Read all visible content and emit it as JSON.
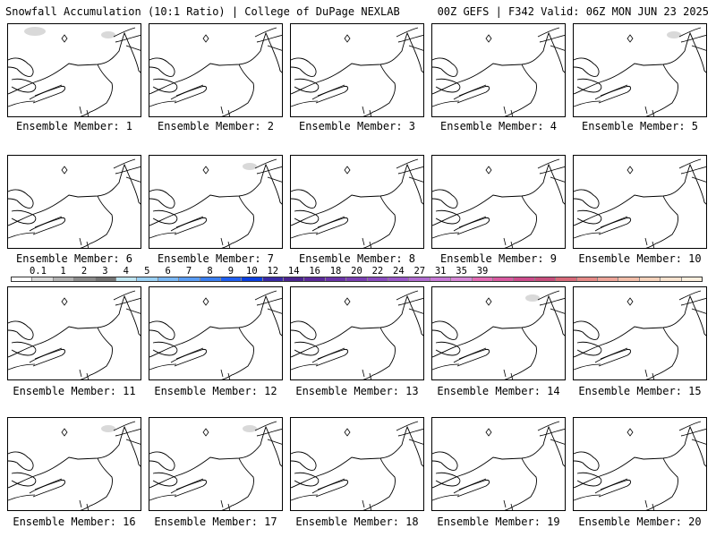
{
  "header": {
    "title_left": "Snowfall Accumulation (10:1 Ratio) | College of DuPage NEXLAB",
    "title_right": "00Z GEFS | F342 Valid: 06Z MON JUN 23 2025"
  },
  "panels": [
    {
      "label": "Ensemble Member: 1",
      "snow_patches": 2
    },
    {
      "label": "Ensemble Member: 2",
      "snow_patches": 0
    },
    {
      "label": "Ensemble Member: 3",
      "snow_patches": 0
    },
    {
      "label": "Ensemble Member: 4",
      "snow_patches": 0
    },
    {
      "label": "Ensemble Member: 5",
      "snow_patches": 1
    },
    {
      "label": "Ensemble Member: 6",
      "snow_patches": 0
    },
    {
      "label": "Ensemble Member: 7",
      "snow_patches": 1
    },
    {
      "label": "Ensemble Member: 8",
      "snow_patches": 0
    },
    {
      "label": "Ensemble Member: 9",
      "snow_patches": 0
    },
    {
      "label": "Ensemble Member: 10",
      "snow_patches": 0
    },
    {
      "label": "Ensemble Member: 11",
      "snow_patches": 0
    },
    {
      "label": "Ensemble Member: 12",
      "snow_patches": 0
    },
    {
      "label": "Ensemble Member: 13",
      "snow_patches": 0
    },
    {
      "label": "Ensemble Member: 14",
      "snow_patches": 1
    },
    {
      "label": "Ensemble Member: 15",
      "snow_patches": 0
    },
    {
      "label": "Ensemble Member: 16",
      "snow_patches": 1
    },
    {
      "label": "Ensemble Member: 17",
      "snow_patches": 1
    },
    {
      "label": "Ensemble Member: 18",
      "snow_patches": 0
    },
    {
      "label": "Ensemble Member: 19",
      "snow_patches": 0
    },
    {
      "label": "Ensemble Member: 20",
      "snow_patches": 0
    }
  ],
  "colorbar": {
    "ticks": [
      "0.1",
      "1",
      "2",
      "3",
      "4",
      "5",
      "6",
      "7",
      "8",
      "9",
      "10",
      "12",
      "14",
      "16",
      "18",
      "20",
      "22",
      "24",
      "27",
      "31",
      "35",
      "39"
    ],
    "colors": [
      "#ffffff",
      "#d9d9d9",
      "#b3b3b3",
      "#8c8c8c",
      "#737373",
      "#bfe6f2",
      "#9ad1f5",
      "#7ab8f5",
      "#5a9df5",
      "#3b7ff0",
      "#1f5ff0",
      "#0b3fe0",
      "#3a2aa6",
      "#4b2590",
      "#5b2a9a",
      "#6b34a8",
      "#7a3fb2",
      "#8a4cbf",
      "#9a58c8",
      "#b06ccf",
      "#c77ad6",
      "#d687d6",
      "#e26bb4",
      "#d85aa0",
      "#cc4c8c",
      "#c74e7d",
      "#d86a7a",
      "#e58a87",
      "#eda599",
      "#f2bea9",
      "#f6d3bc",
      "#f9e3cf",
      "#fcefde"
    ]
  }
}
